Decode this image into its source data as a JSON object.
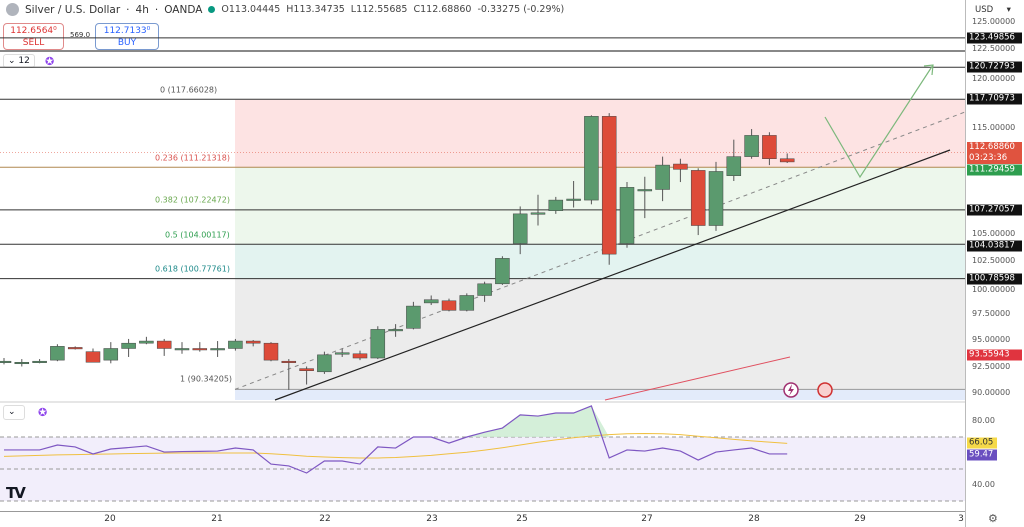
{
  "header": {
    "symbol": "Silver / U.S. Dollar",
    "interval": "4h",
    "broker": "OANDA",
    "open": "O113.04445",
    "high": "H113.34735",
    "low": "L112.55685",
    "close": "C112.68860",
    "change": "-0.33275 (-0.29%)"
  },
  "trade": {
    "sell_price": "112.6564⁰",
    "sell_label": "SELL",
    "spread": "569.0",
    "buy_price": "112.7133⁰",
    "buy_label": "BUY"
  },
  "indicator_box": {
    "value": "12"
  },
  "price_axis": {
    "currency": "USD",
    "ticks": [
      "125.00000",
      "122.50000",
      "120.00000",
      "115.00000",
      "105.00000",
      "102.50000",
      "100.00000",
      "97.50000",
      "95.00000",
      "92.50000",
      "90.00000"
    ],
    "tick_values": [
      125,
      122.5,
      120,
      115,
      105,
      102.5,
      100,
      97.5,
      95,
      92.5,
      90
    ]
  },
  "price_tags": [
    {
      "label": "123.49856",
      "value": 123.49856,
      "color": "#111111"
    },
    {
      "label": "120.72793",
      "value": 120.72793,
      "color": "#111111"
    },
    {
      "label": "117.70973",
      "value": 117.70973,
      "color": "#111111"
    },
    {
      "label": "107.27057",
      "value": 107.27057,
      "color": "#111111"
    },
    {
      "label": "104.03817",
      "value": 104.03817,
      "color": "#111111"
    },
    {
      "label": "100.78598",
      "value": 100.78598,
      "color": "#111111"
    },
    {
      "label": "111.29459",
      "value": 111.29459,
      "color": "#2e9e4f"
    },
    {
      "label": "93.55943",
      "value": 93.55943,
      "color": "#e0343f"
    }
  ],
  "last_price": {
    "label": "112.68860",
    "countdown": "03:23:36",
    "value": 112.6886,
    "color": "#e0533f"
  },
  "fib": [
    {
      "label": "0 (117.66028)",
      "value": 117.66028,
      "color": "#555555"
    },
    {
      "label": "0.236 (111.21318)",
      "value": 111.21318,
      "color": "#d9534f"
    },
    {
      "label": "0.382 (107.22472)",
      "value": 107.22472,
      "color": "#6aa84f"
    },
    {
      "label": "0.5 (104.00117)",
      "value": 104.00117,
      "color": "#2e9e4f"
    },
    {
      "label": "0.618 (100.77761)",
      "value": 100.77761,
      "color": "#1e8a8a"
    },
    {
      "label": "1 (90.34205)",
      "value": 90.34205,
      "color": "#555555"
    }
  ],
  "rsi": {
    "ticks": [
      "80.00",
      "40.00"
    ],
    "tick_values": [
      80,
      40
    ],
    "rsi_label": "66.05",
    "ma_label": "59.47",
    "rsi_color": "#7e57c2",
    "ma_color": "#f0c040"
  },
  "x_axis": {
    "ticks": [
      "20",
      "21",
      "22",
      "23",
      "25",
      "27",
      "28",
      "29",
      "3"
    ]
  },
  "colors": {
    "up": "#5b9a6e",
    "down": "#dd4b39"
  },
  "chart_data": {
    "type": "candlestick",
    "ohlc": [
      [
        93.0,
        93.3,
        92.7,
        93.0
      ],
      [
        92.9,
        93.2,
        92.5,
        92.9
      ],
      [
        93.0,
        93.2,
        92.8,
        93.0
      ],
      [
        93.1,
        94.6,
        93.0,
        94.4
      ],
      [
        94.3,
        94.4,
        94.1,
        94.2
      ],
      [
        93.9,
        94.2,
        93.0,
        92.9
      ],
      [
        93.1,
        94.8,
        92.8,
        94.2
      ],
      [
        94.2,
        95.1,
        93.4,
        94.7
      ],
      [
        94.7,
        95.3,
        94.6,
        94.9
      ],
      [
        94.9,
        95.1,
        93.5,
        94.2
      ],
      [
        94.2,
        94.8,
        93.7,
        94.2
      ],
      [
        94.2,
        94.8,
        93.9,
        94.1
      ],
      [
        94.2,
        94.9,
        93.4,
        94.2
      ],
      [
        94.2,
        95.1,
        94.0,
        94.9
      ],
      [
        94.9,
        95.0,
        94.4,
        94.7
      ],
      [
        94.7,
        94.8,
        93.0,
        93.1
      ],
      [
        93.0,
        93.2,
        90.3,
        92.9
      ],
      [
        92.3,
        92.5,
        90.8,
        92.1
      ],
      [
        92.0,
        93.9,
        91.8,
        93.6
      ],
      [
        93.8,
        94.2,
        93.4,
        93.8
      ],
      [
        93.7,
        94.0,
        93.1,
        93.3
      ],
      [
        93.3,
        96.3,
        93.2,
        96.0
      ],
      [
        96.0,
        96.5,
        95.3,
        96.0
      ],
      [
        96.1,
        98.6,
        96.0,
        98.2
      ],
      [
        98.5,
        99.2,
        98.3,
        98.8
      ],
      [
        98.7,
        98.9,
        97.7,
        97.8
      ],
      [
        97.8,
        99.4,
        97.7,
        99.2
      ],
      [
        99.2,
        100.5,
        98.6,
        100.3
      ],
      [
        100.3,
        102.9,
        100.2,
        102.7
      ],
      [
        104.1,
        107.6,
        103.1,
        106.9
      ],
      [
        107.0,
        108.7,
        105.8,
        107.0
      ],
      [
        107.2,
        108.5,
        106.9,
        108.2
      ],
      [
        108.3,
        110.0,
        107.5,
        108.3
      ],
      [
        108.2,
        116.2,
        107.8,
        116.1
      ],
      [
        116.1,
        116.4,
        102.1,
        103.1
      ],
      [
        104.1,
        109.9,
        103.7,
        109.4
      ],
      [
        109.2,
        110.4,
        106.5,
        109.2
      ],
      [
        109.2,
        112.3,
        108.1,
        111.5
      ],
      [
        111.6,
        112.1,
        109.9,
        111.1
      ],
      [
        111.0,
        111.2,
        104.9,
        105.8
      ],
      [
        105.8,
        111.8,
        105.3,
        110.9
      ],
      [
        110.5,
        113.9,
        110.0,
        112.3
      ],
      [
        112.3,
        114.9,
        112.1,
        114.3
      ],
      [
        114.3,
        114.6,
        111.5,
        112.1
      ],
      [
        112.1,
        112.6,
        111.7,
        111.8
      ]
    ],
    "rsi": [
      61.9,
      61.9,
      61.9,
      65.0,
      63.8,
      59.4,
      62.5,
      63.4,
      64.4,
      60.6,
      60.9,
      61.0,
      61.2,
      63.1,
      61.9,
      53.1,
      51.9,
      47.5,
      55.0,
      55.0,
      53.1,
      63.8,
      63.1,
      70.0,
      70.0,
      66.2,
      70.0,
      73.0,
      75.6,
      83.8,
      83.1,
      85.0,
      85.0,
      89.4,
      56.9,
      61.9,
      61.2,
      63.1,
      61.2,
      55.6,
      60.6,
      61.9,
      63.1,
      59.4,
      59.4
    ],
    "rsi_ma": [
      57.9,
      58.2,
      58.5,
      58.8,
      59.0,
      59.2,
      59.4,
      59.6,
      59.8,
      59.9,
      60.0,
      60.0,
      60.0,
      60.0,
      60.0,
      59.5,
      58.8,
      58.0,
      57.5,
      57.1,
      56.9,
      56.9,
      57.2,
      57.8,
      58.5,
      59.5,
      60.5,
      61.8,
      63.3,
      65.0,
      66.7,
      68.2,
      69.5,
      70.6,
      71.5,
      72.0,
      72.2,
      72.0,
      71.5,
      70.5,
      69.5,
      68.5,
      67.6,
      66.8,
      66.0
    ],
    "price_range": [
      88.5,
      126.5
    ],
    "rsi_levels": [
      70,
      50,
      30
    ]
  }
}
